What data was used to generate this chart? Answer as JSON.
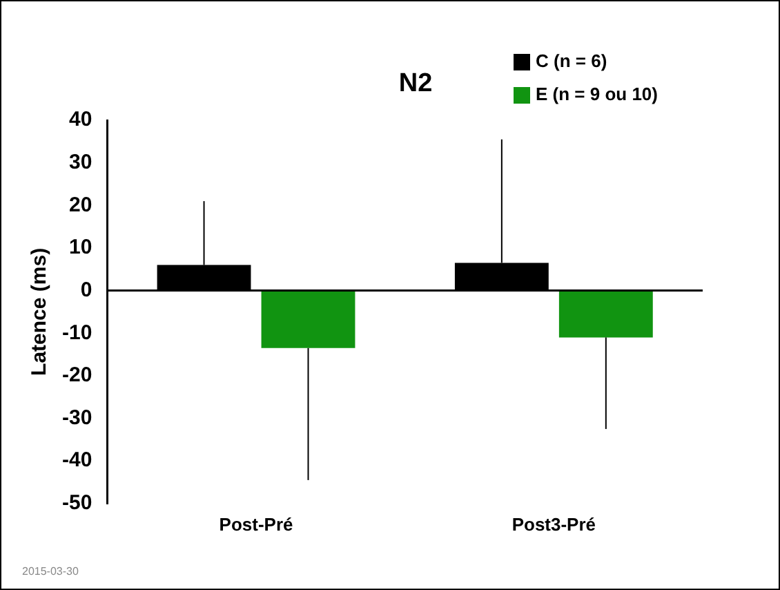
{
  "chart_data": {
    "type": "bar",
    "title": "N2",
    "ylabel": "Latence (ms)",
    "categories": [
      "Post-Pré",
      "Post3-Pré"
    ],
    "series": [
      {
        "name": "C (n = 6)",
        "color": "#000000",
        "values": [
          6,
          6.5
        ],
        "errors": [
          [
            6,
            21
          ],
          [
            6.5,
            35.5
          ]
        ]
      },
      {
        "name": "E (n = 9 ou 10)",
        "color": "#119411",
        "values": [
          -13.5,
          -11
        ],
        "errors": [
          [
            -44.5,
            -13.5
          ],
          [
            -32.5,
            -11
          ]
        ]
      }
    ],
    "ylim": [
      -50,
      40
    ],
    "yticks": [
      -50,
      -40,
      -30,
      -20,
      -10,
      0,
      10,
      20,
      30,
      40
    ],
    "grid": false,
    "ref_lines": [
      {
        "axis": "y",
        "value": 0,
        "color": "#000000"
      }
    ],
    "legend": "top right",
    "annotations": [
      "2015-03-30"
    ]
  }
}
